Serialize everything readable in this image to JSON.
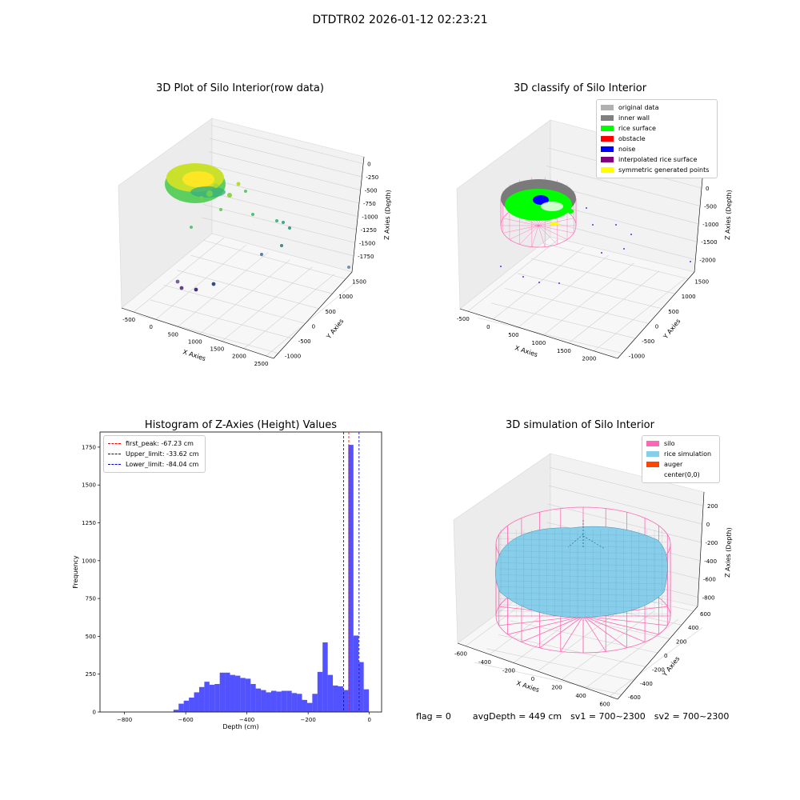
{
  "suptitle": "DTDTR02 2026-01-12 02:23:21",
  "chart_data": [
    {
      "type": "scatter",
      "title": "3D Plot of Silo Interior(row data)",
      "xlabel": "X Axies",
      "ylabel": "Y Axies",
      "zlabel": "Z Axies (Depth)",
      "x_ticks": [
        "-500",
        "0",
        "500",
        "1000",
        "1500",
        "2000",
        "2500"
      ],
      "y_ticks": [
        "-1000",
        "-500",
        "0",
        "500",
        "1000",
        "1500"
      ],
      "z_ticks": [
        "0",
        "-250",
        "-500",
        "-750",
        "-1000",
        "-1250",
        "-1500",
        "-1750"
      ],
      "colormap": "viridis"
    },
    {
      "type": "scatter",
      "title": "3D classify of Silo Interior",
      "xlabel": "X Axies",
      "ylabel": "Y Axies",
      "zlabel": "Z Axies (Depth)",
      "x_ticks": [
        "-500",
        "0",
        "500",
        "1000",
        "1500",
        "2000"
      ],
      "y_ticks": [
        "-1000",
        "-500",
        "0",
        "500",
        "1000",
        "1500"
      ],
      "z_ticks": [
        "0",
        "-500",
        "-1000",
        "-1500",
        "-2000"
      ],
      "z_top_partial": "00",
      "legend": [
        {
          "label": "original data",
          "color": "#b0b0b0"
        },
        {
          "label": "inner wall",
          "color": "#808080"
        },
        {
          "label": "rice surface",
          "color": "#00ff00"
        },
        {
          "label": "obstacle",
          "color": "#ff0000"
        },
        {
          "label": "noise",
          "color": "#0000ff"
        },
        {
          "label": "interpolated rice surface",
          "color": "#800080"
        },
        {
          "label": "symmetric generated points",
          "color": "#ffff00"
        }
      ]
    },
    {
      "type": "bar",
      "title": "Histogram of Z-Axies (Height) Values",
      "xlabel": "Depth (cm)",
      "ylabel": "Frequency",
      "xlim": [
        -880,
        40
      ],
      "ylim": [
        0,
        1850
      ],
      "x_ticks": [
        -800,
        -600,
        -400,
        -200,
        0
      ],
      "y_ticks": [
        0,
        250,
        500,
        750,
        1000,
        1250,
        1500,
        1750
      ],
      "bin_start": -640,
      "bin_width": 16.8,
      "color": "#0000ff",
      "values": [
        15,
        55,
        75,
        95,
        130,
        165,
        200,
        180,
        185,
        260,
        260,
        245,
        240,
        225,
        220,
        185,
        155,
        145,
        130,
        140,
        135,
        140,
        140,
        125,
        120,
        80,
        60,
        120,
        265,
        460,
        245,
        175,
        170,
        145,
        1765,
        505,
        330,
        150
      ],
      "vlines": [
        {
          "label": "first_peak: -67.23 cm",
          "x": -67.23,
          "color": "#ff0000"
        },
        {
          "label": "Upper_limit: -33.62 cm",
          "x": -33.62,
          "color": "#0000cc"
        },
        {
          "label": "Lower_limit: -84.04 cm",
          "x": -84.04,
          "color": "#0000cc"
        }
      ]
    },
    {
      "type": "surface",
      "title": "3D simulation of Silo Interior",
      "xlabel": "X Axies",
      "ylabel": "Y Axies",
      "zlabel": "Z Axies (Depth)",
      "x_ticks": [
        "-600",
        "-400",
        "-200",
        "0",
        "200",
        "400",
        "600"
      ],
      "y_ticks": [
        "-600",
        "-400",
        "-200",
        "0",
        "200",
        "400",
        "600"
      ],
      "z_ticks": [
        "200",
        "0",
        "-200",
        "-400",
        "-600",
        "-800"
      ],
      "legend": [
        {
          "label": "silo",
          "color": "#ff69b4"
        },
        {
          "label": "rice simulation",
          "color": "#87ceeb"
        },
        {
          "label": "auger",
          "color": "#ff4500"
        },
        {
          "label": "center(0,0)",
          "color": ""
        }
      ]
    }
  ],
  "footer": {
    "flag": "flag = 0",
    "avg": "avgDepth = 449 cm",
    "sv1": "sv1 = 700~2300",
    "sv2": "sv2 = 700~2300"
  }
}
